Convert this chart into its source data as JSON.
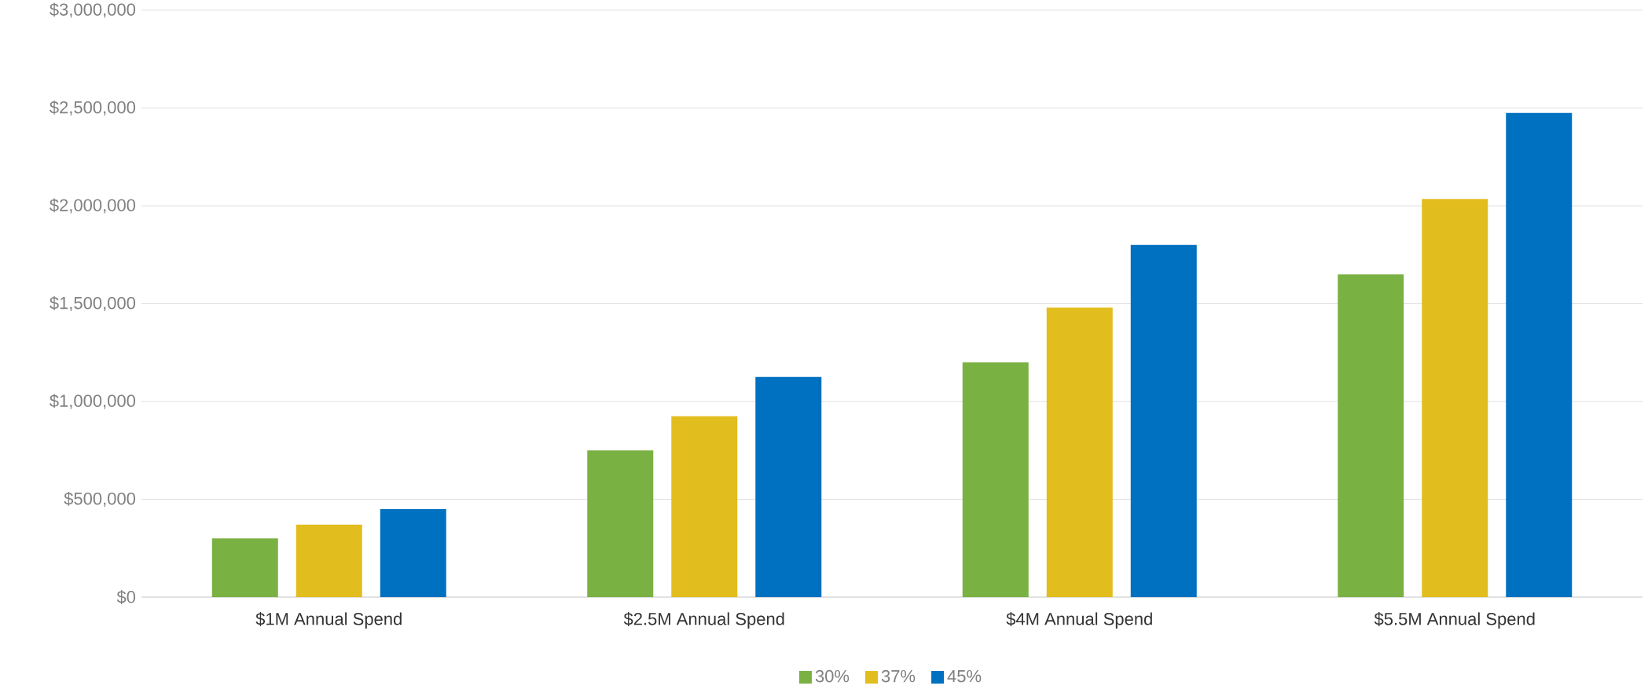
{
  "chart_data": {
    "type": "bar",
    "categories": [
      "$1M Annual Spend",
      "$2.5M Annual Spend",
      "$4M Annual Spend",
      "$5.5M Annual Spend"
    ],
    "series": [
      {
        "name": "30%",
        "color": "#7ab143",
        "values": [
          300000,
          750000,
          1200000,
          1650000
        ]
      },
      {
        "name": "37%",
        "color": "#e2bd1e",
        "values": [
          370000,
          925000,
          1480000,
          2035000
        ]
      },
      {
        "name": "45%",
        "color": "#0070c0",
        "values": [
          450000,
          1125000,
          1800000,
          2475000
        ]
      }
    ],
    "ylim": [
      0,
      3000000
    ],
    "yticks": [
      {
        "value": 0,
        "label": "$0"
      },
      {
        "value": 500000,
        "label": "$500,000"
      },
      {
        "value": 1000000,
        "label": "$1,000,000"
      },
      {
        "value": 1500000,
        "label": "$1,500,000"
      },
      {
        "value": 2000000,
        "label": "$2,000,000"
      },
      {
        "value": 2500000,
        "label": "$2,500,000"
      },
      {
        "value": 3000000,
        "label": "$3,000,000"
      }
    ],
    "grid": "y",
    "legend": "bottom"
  }
}
